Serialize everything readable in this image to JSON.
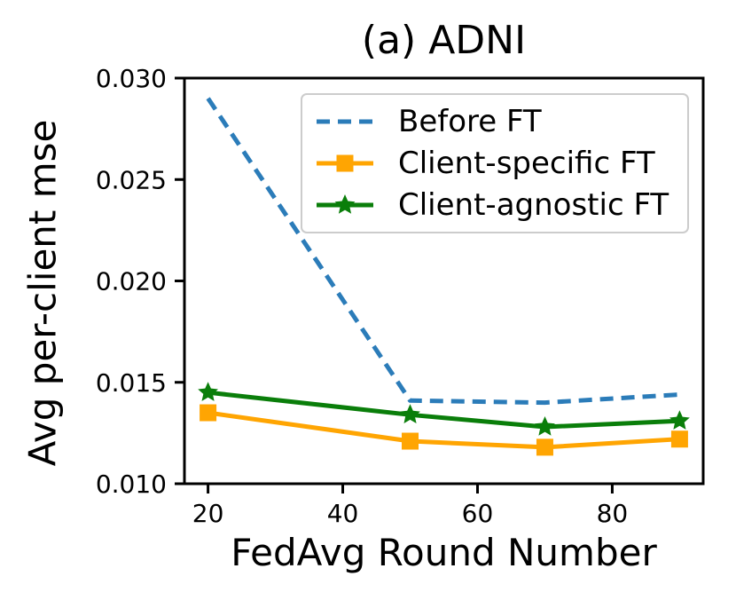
{
  "title": "(a) ADNI",
  "chart_data": {
    "type": "line",
    "title": "(a) ADNI",
    "xlabel": "FedAvg Round Number",
    "ylabel": "Avg per-client mse",
    "x": [
      20,
      50,
      70,
      90
    ],
    "series": [
      {
        "name": "Before FT",
        "color": "#2b7cb9",
        "line": "dashed",
        "marker": "none",
        "values": [
          0.029,
          0.0141,
          0.014,
          0.0144
        ]
      },
      {
        "name": "Client-specific FT",
        "color": "#ffa502",
        "line": "solid",
        "marker": "square",
        "values": [
          0.0135,
          0.0121,
          0.0118,
          0.0122
        ]
      },
      {
        "name": "Client-agnostic FT",
        "color": "#0a7e0a",
        "line": "solid",
        "marker": "star",
        "values": [
          0.0145,
          0.0134,
          0.0128,
          0.0131
        ]
      }
    ],
    "xlim": [
      16.5,
      93.5
    ],
    "ylim": [
      0.01,
      0.03
    ],
    "xticks": {
      "values": [
        20,
        40,
        60,
        80
      ],
      "labels": [
        "20",
        "40",
        "60",
        "80"
      ]
    },
    "yticks": {
      "values": [
        0.01,
        0.015,
        0.02,
        0.025,
        0.03
      ],
      "labels": [
        "0.010",
        "0.015",
        "0.020",
        "0.025",
        "0.030"
      ]
    },
    "legend": {
      "position": "upper right",
      "entries": [
        "Before FT",
        "Client-specific FT",
        "Client-agnostic FT"
      ]
    },
    "grid": false,
    "colors": {
      "axis": "#000000",
      "legend_border": "#cccccc",
      "background": "#ffffff"
    }
  }
}
